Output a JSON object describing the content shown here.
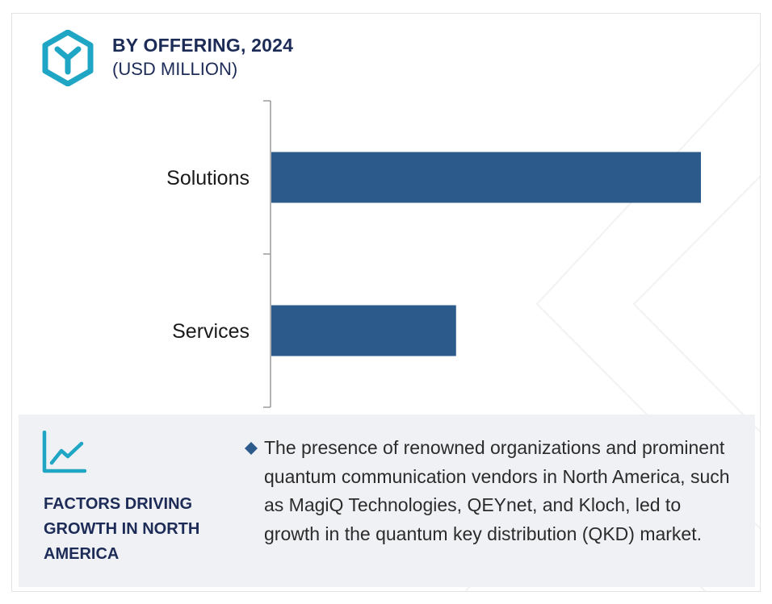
{
  "header": {
    "title": "BY OFFERING, 2024",
    "subtitle": "(USD MILLION)",
    "logo_icon": "hexagon-y-logo-icon",
    "accent_color": "#1fa6c4"
  },
  "chart_data": {
    "type": "bar",
    "orientation": "horizontal",
    "categories": [
      "Solutions",
      "Services"
    ],
    "values": [
      100,
      43
    ],
    "value_note": "relative bar lengths (no numeric labels shown)",
    "title": "BY OFFERING, 2024",
    "xlabel": "",
    "ylabel": "",
    "grid": false,
    "bar_color": "#2c5a8a"
  },
  "factors": {
    "icon": "line-chart-icon",
    "heading": "FACTORS DRIVING GROWTH IN NORTH AMERICA",
    "bullet_icon": "diamond-bullet-icon",
    "text": "The presence of renowned organizations and prominent quantum communication vendors in North America, such as MagiQ Technologies, QEYnet, and Kloch, led to growth in the quantum key distribution (QKD) market."
  }
}
